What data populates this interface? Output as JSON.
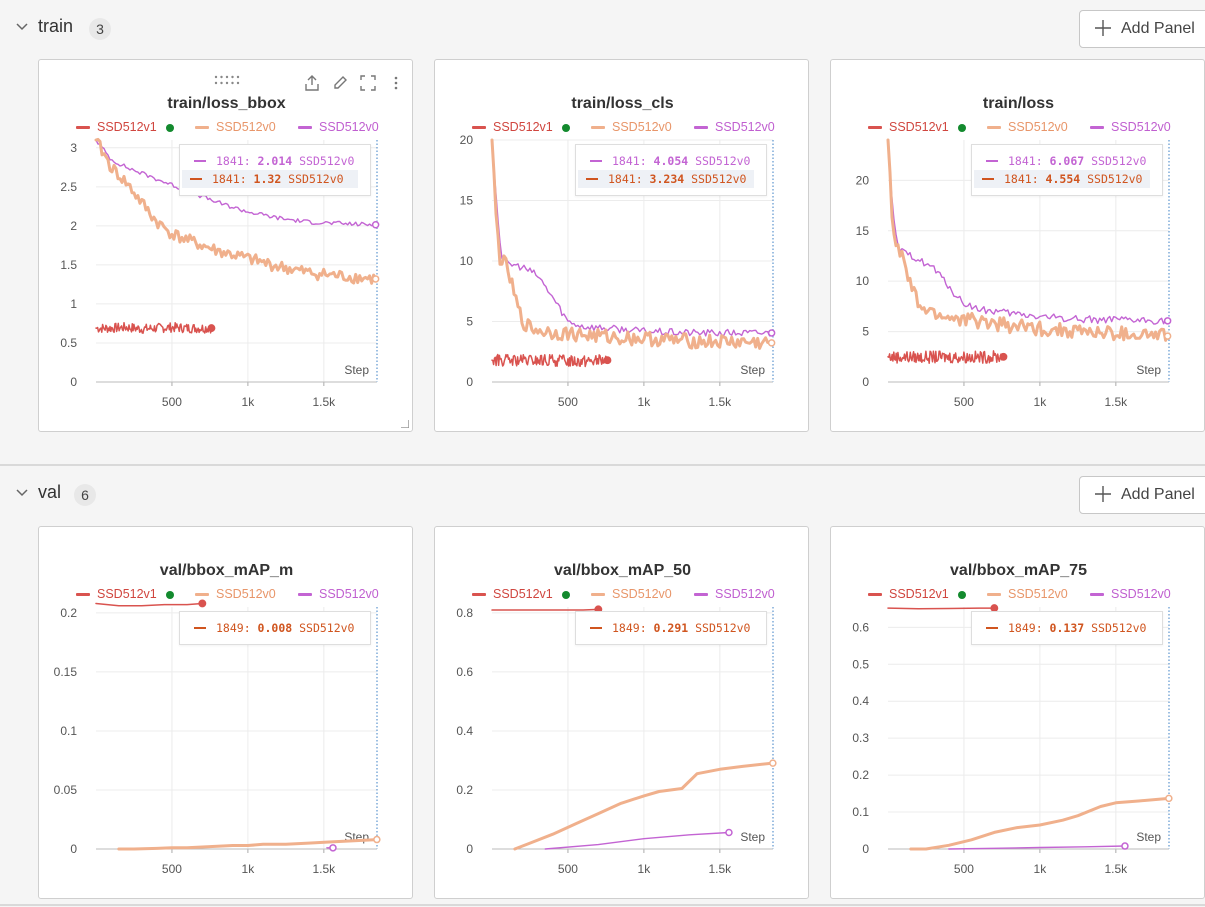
{
  "colors": {
    "v1": "#d9534f",
    "v0orange": "#f0b08c",
    "v0purple": "#c364d3",
    "dot": "#138a2e"
  },
  "sections": [
    {
      "title": "train",
      "count": "3",
      "add_panel": "Add Panel"
    },
    {
      "title": "val",
      "count": "6",
      "add_panel": "Add Panel"
    }
  ],
  "legend": [
    "SSD512v1",
    "SSD512v0",
    "SSD512v0"
  ],
  "panels": [
    {
      "title": "train/loss_bbox",
      "show_toolbar": true,
      "tooltip": [
        {
          "color": "#c364d3",
          "step": "1841:",
          "value": "2.014",
          "run": "SSD512v0",
          "highlight": false
        },
        {
          "color": "#d0551f",
          "step": "1841:",
          "value": "1.32",
          "run": "SSD512v0",
          "highlight": true
        }
      ],
      "chart_data": {
        "type": "line",
        "xlabel": "Step",
        "xlim": [
          0,
          1850
        ],
        "ylim": [
          0,
          3.1
        ],
        "xticks": [
          500,
          1000,
          1500
        ],
        "xtick_labels": [
          "500",
          "1k",
          "1.5k"
        ],
        "yticks": [
          0,
          0.5,
          1,
          1.5,
          2,
          2.5,
          3
        ],
        "ytick_labels": [
          "0",
          "0.5",
          "1",
          "1.5",
          "2",
          "2.5",
          "3"
        ],
        "series": [
          {
            "name": "SSD512v1",
            "color": "#d9534f",
            "width": 1.5,
            "noise": 0.04,
            "x": [
              0,
              100,
              200,
              300,
              400,
              500,
              600,
              700,
              760
            ],
            "y": [
              0.69,
              0.69,
              0.7,
              0.68,
              0.69,
              0.7,
              0.69,
              0.69,
              0.69
            ]
          },
          {
            "name": "SSD512v0",
            "color": "#c364d3",
            "width": 1.4,
            "noise": 0.03,
            "x": [
              0,
              100,
              200,
              400,
              600,
              800,
              1000,
              1200,
              1400,
              1600,
              1841
            ],
            "y": [
              3.1,
              2.85,
              2.75,
              2.6,
              2.45,
              2.3,
              2.18,
              2.1,
              2.05,
              2.03,
              2.014
            ]
          },
          {
            "name": "SSD512v0",
            "color": "#f0b08c",
            "width": 3,
            "noise": 0.05,
            "x": [
              0,
              100,
              200,
              300,
              400,
              500,
              600,
              700,
              800,
              900,
              1000,
              1200,
              1400,
              1600,
              1841
            ],
            "y": [
              3.1,
              2.75,
              2.55,
              2.3,
              2.05,
              1.9,
              1.82,
              1.75,
              1.68,
              1.63,
              1.58,
              1.48,
              1.4,
              1.36,
              1.32
            ]
          }
        ]
      }
    },
    {
      "title": "train/loss_cls",
      "show_toolbar": false,
      "tooltip": [
        {
          "color": "#c364d3",
          "step": "1841:",
          "value": "4.054",
          "run": "SSD512v0",
          "highlight": false
        },
        {
          "color": "#d0551f",
          "step": "1841:",
          "value": "3.234",
          "run": "SSD512v0",
          "highlight": true
        }
      ],
      "chart_data": {
        "type": "line",
        "xlabel": "Step",
        "xlim": [
          0,
          1850
        ],
        "ylim": [
          0,
          20
        ],
        "xticks": [
          500,
          1000,
          1500
        ],
        "xtick_labels": [
          "500",
          "1k",
          "1.5k"
        ],
        "yticks": [
          0,
          5,
          10,
          15,
          20
        ],
        "ytick_labels": [
          "0",
          "5",
          "10",
          "15",
          "20"
        ],
        "series": [
          {
            "name": "SSD512v1",
            "color": "#d9534f",
            "width": 1.5,
            "noise": 0.05,
            "x": [
              0,
              200,
              400,
              600,
              760
            ],
            "y": [
              1.8,
              1.75,
              1.78,
              1.76,
              1.8
            ]
          },
          {
            "name": "SSD512v0",
            "color": "#c364d3",
            "width": 1.4,
            "noise": 0.05,
            "x": [
              0,
              30,
              60,
              100,
              200,
              300,
              400,
              450,
              500,
              600,
              800,
              1000,
              1200,
              1400,
              1600,
              1841
            ],
            "y": [
              20,
              15,
              10.5,
              9.8,
              9.5,
              8.8,
              7,
              6,
              5,
              4.6,
              4.4,
              4.2,
              4.1,
              4.05,
              4.05,
              4.054
            ]
          },
          {
            "name": "SSD512v0",
            "color": "#f0b08c",
            "width": 3,
            "noise": 0.06,
            "x": [
              0,
              25,
              50,
              100,
              150,
              200,
              250,
              300,
              400,
              600,
              800,
              1000,
              1200,
              1400,
              1600,
              1841
            ],
            "y": [
              20,
              14,
              10.3,
              9.5,
              7,
              5,
              4.5,
              4.3,
              4.1,
              3.9,
              3.7,
              3.6,
              3.45,
              3.35,
              3.3,
              3.234
            ]
          }
        ]
      }
    },
    {
      "title": "train/loss",
      "show_toolbar": false,
      "tooltip": [
        {
          "color": "#c364d3",
          "step": "1841:",
          "value": "6.067",
          "run": "SSD512v0",
          "highlight": false
        },
        {
          "color": "#d0551f",
          "step": "1841:",
          "value": "4.554",
          "run": "SSD512v0",
          "highlight": true
        }
      ],
      "chart_data": {
        "type": "line",
        "xlabel": "Step",
        "xlim": [
          0,
          1850
        ],
        "ylim": [
          0,
          24
        ],
        "xticks": [
          500,
          1000,
          1500
        ],
        "xtick_labels": [
          "500",
          "1k",
          "1.5k"
        ],
        "yticks": [
          0,
          5,
          10,
          15,
          20
        ],
        "ytick_labels": [
          "0",
          "5",
          "10",
          "15",
          "20"
        ],
        "series": [
          {
            "name": "SSD512v1",
            "color": "#d9534f",
            "width": 1.5,
            "noise": 0.05,
            "x": [
              0,
              200,
              400,
              600,
              760
            ],
            "y": [
              2.5,
              2.45,
              2.48,
              2.46,
              2.5
            ]
          },
          {
            "name": "SSD512v0",
            "color": "#c364d3",
            "width": 1.4,
            "noise": 0.05,
            "x": [
              0,
              30,
              60,
              100,
              200,
              300,
              400,
              450,
              500,
              600,
              800,
              1000,
              1200,
              1400,
              1600,
              1841
            ],
            "y": [
              24,
              17,
              13.5,
              12.8,
              12.2,
              11.3,
              9.5,
              8.5,
              7.8,
              7.2,
              6.8,
              6.5,
              6.3,
              6.15,
              6.1,
              6.067
            ]
          },
          {
            "name": "SSD512v0",
            "color": "#f0b08c",
            "width": 3,
            "noise": 0.06,
            "x": [
              0,
              25,
              50,
              100,
              150,
              200,
              250,
              300,
              400,
              600,
              800,
              1000,
              1200,
              1400,
              1600,
              1841
            ],
            "y": [
              24,
              17,
              13.5,
              12.2,
              9.5,
              7.7,
              7.1,
              6.8,
              6.4,
              6,
              5.6,
              5.3,
              5.1,
              4.85,
              4.7,
              4.554
            ]
          }
        ]
      }
    },
    {
      "title": "val/bbox_mAP_m",
      "show_toolbar": false,
      "tooltip": [
        {
          "color": "#d0551f",
          "step": "1849:",
          "value": "0.008",
          "run": "SSD512v0",
          "highlight": false
        }
      ],
      "chart_data": {
        "type": "line",
        "xlabel": "Step",
        "xlim": [
          0,
          1850
        ],
        "ylim": [
          0,
          0.205
        ],
        "xticks": [
          500,
          1000,
          1500
        ],
        "xtick_labels": [
          "500",
          "1k",
          "1.5k"
        ],
        "yticks": [
          0,
          0.05,
          0.1,
          0.15,
          0.2
        ],
        "ytick_labels": [
          "0",
          "0.05",
          "0.1",
          "0.15",
          "0.2"
        ],
        "series": [
          {
            "name": "SSD512v1",
            "color": "#d9534f",
            "width": 1.5,
            "noise": 0,
            "x": [
              0,
              150,
              300,
              450,
              600,
              700
            ],
            "y": [
              0.208,
              0.206,
              0.206,
              0.207,
              0.207,
              0.208
            ]
          },
          {
            "name": "SSD512v0",
            "color": "#c364d3",
            "width": 1.4,
            "noise": 0,
            "x": [
              1520,
              1560
            ],
            "y": [
              0.001,
              0.001
            ]
          },
          {
            "name": "SSD512v0",
            "color": "#f0b08c",
            "width": 3,
            "noise": 0,
            "x": [
              150,
              250,
              400,
              500,
              600,
              750,
              900,
              1000,
              1100,
              1250,
              1400,
              1550,
              1700,
              1849
            ],
            "y": [
              0,
              0,
              0.0005,
              0.001,
              0.001,
              0.002,
              0.003,
              0.003,
              0.004,
              0.004,
              0.005,
              0.006,
              0.007,
              0.008
            ]
          }
        ]
      }
    },
    {
      "title": "val/bbox_mAP_50",
      "show_toolbar": false,
      "tooltip": [
        {
          "color": "#d0551f",
          "step": "1849:",
          "value": "0.291",
          "run": "SSD512v0",
          "highlight": false
        }
      ],
      "chart_data": {
        "type": "line",
        "xlabel": "Step",
        "xlim": [
          0,
          1850
        ],
        "ylim": [
          0,
          0.82
        ],
        "xticks": [
          500,
          1000,
          1500
        ],
        "xtick_labels": [
          "500",
          "1k",
          "1.5k"
        ],
        "yticks": [
          0,
          0.2,
          0.4,
          0.6,
          0.8
        ],
        "ytick_labels": [
          "0",
          "0.2",
          "0.4",
          "0.6",
          "0.8"
        ],
        "series": [
          {
            "name": "SSD512v1",
            "color": "#d9534f",
            "width": 1.5,
            "noise": 0,
            "x": [
              0,
              200,
              400,
              600,
              700
            ],
            "y": [
              0.81,
              0.81,
              0.81,
              0.81,
              0.812
            ]
          },
          {
            "name": "SSD512v0",
            "color": "#c364d3",
            "width": 1.4,
            "noise": 0,
            "x": [
              350,
              700,
              1000,
              1300,
              1560
            ],
            "y": [
              0,
              0.015,
              0.035,
              0.048,
              0.056
            ]
          },
          {
            "name": "SSD512v0",
            "color": "#f0b08c",
            "width": 3,
            "noise": 0,
            "x": [
              150,
              250,
              400,
              550,
              700,
              850,
              1000,
              1100,
              1250,
              1350,
              1500,
              1650,
              1849
            ],
            "y": [
              0,
              0.02,
              0.05,
              0.085,
              0.12,
              0.155,
              0.18,
              0.195,
              0.205,
              0.255,
              0.27,
              0.28,
              0.291
            ]
          }
        ]
      }
    },
    {
      "title": "val/bbox_mAP_75",
      "show_toolbar": false,
      "tooltip": [
        {
          "color": "#d0551f",
          "step": "1849:",
          "value": "0.137",
          "run": "SSD512v0",
          "highlight": false
        }
      ],
      "chart_data": {
        "type": "line",
        "xlabel": "Step",
        "xlim": [
          0,
          1850
        ],
        "ylim": [
          0,
          0.655
        ],
        "xticks": [
          500,
          1000,
          1500
        ],
        "xtick_labels": [
          "500",
          "1k",
          "1.5k"
        ],
        "yticks": [
          0,
          0.1,
          0.2,
          0.3,
          0.4,
          0.5,
          0.6
        ],
        "ytick_labels": [
          "0",
          "0.1",
          "0.2",
          "0.3",
          "0.4",
          "0.5",
          "0.6"
        ],
        "series": [
          {
            "name": "SSD512v1",
            "color": "#d9534f",
            "width": 1.5,
            "noise": 0,
            "x": [
              0,
              200,
              400,
              600,
              700
            ],
            "y": [
              0.652,
              0.65,
              0.651,
              0.652,
              0.652
            ]
          },
          {
            "name": "SSD512v0",
            "color": "#c364d3",
            "width": 1.4,
            "noise": 0,
            "x": [
              400,
              700,
              1000,
              1300,
              1560
            ],
            "y": [
              0,
              0.002,
              0.004,
              0.006,
              0.008
            ]
          },
          {
            "name": "SSD512v0",
            "color": "#f0b08c",
            "width": 3,
            "noise": 0,
            "x": [
              150,
              250,
              400,
              550,
              700,
              850,
              1000,
              1150,
              1250,
              1400,
              1500,
              1650,
              1849
            ],
            "y": [
              0,
              0,
              0.01,
              0.025,
              0.045,
              0.058,
              0.065,
              0.078,
              0.09,
              0.115,
              0.125,
              0.13,
              0.137
            ]
          }
        ]
      }
    }
  ]
}
